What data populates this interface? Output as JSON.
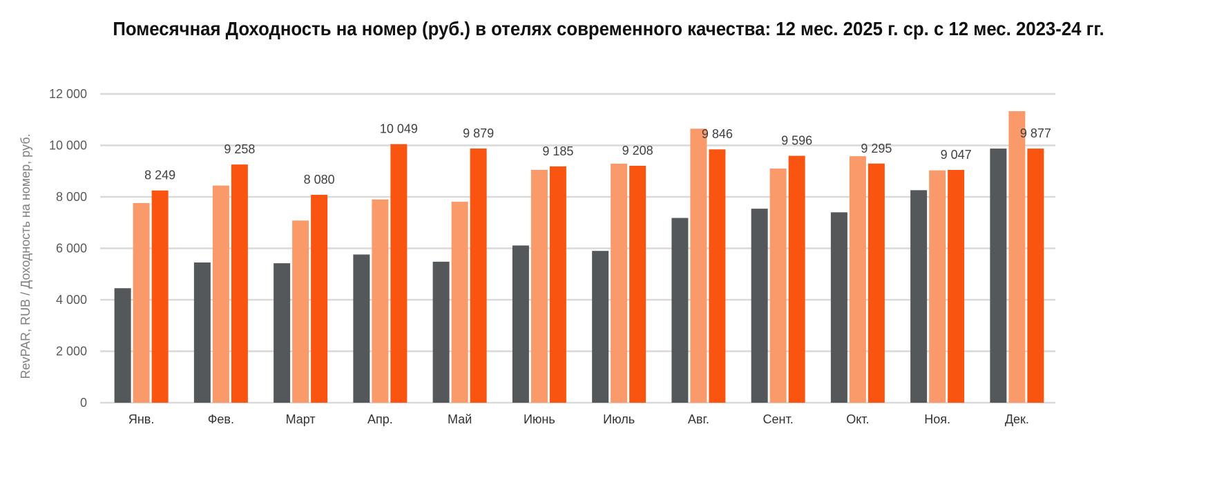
{
  "chart_data": {
    "type": "bar",
    "title": "Помесячная Доходность на номер (руб.) в отелях современного качества: 12 мес. 2025 г. ср. с 12 мес. 2023-24 гг.",
    "xlabel": "",
    "ylabel": "RevPAR, RUB / Доходность на номер, руб.",
    "ylim": [
      0,
      12000
    ],
    "yticks": [
      0,
      2000,
      4000,
      6000,
      8000,
      10000,
      12000
    ],
    "ytick_labels": [
      "0",
      "2 000",
      "4 000",
      "6 000",
      "8 000",
      "10 000",
      "12 000"
    ],
    "grid": true,
    "legend": "none",
    "categories": [
      "Янв.",
      "Фев.",
      "Март",
      "Апр.",
      "Май",
      "Июнь",
      "Июль",
      "Авг.",
      "Сент.",
      "Окт.",
      "Ноя.",
      "Дек."
    ],
    "series": [
      {
        "color": "#54585a",
        "values": [
          4450,
          5450,
          5420,
          5760,
          5480,
          6110,
          5900,
          7180,
          7540,
          7400,
          8260,
          9877
        ]
      },
      {
        "color": "#fa9a6a",
        "values": [
          7760,
          8440,
          7080,
          7900,
          7810,
          9050,
          9290,
          10650,
          9100,
          9580,
          9030,
          11330
        ]
      },
      {
        "color": "#fa5510",
        "values": [
          8249,
          9258,
          8080,
          10049,
          9879,
          9185,
          9208,
          9846,
          9596,
          9295,
          9047,
          9877
        ],
        "data_labels": [
          "8 249",
          "9 258",
          "8 080",
          "10 049",
          "9 879",
          "9 185",
          "9 208",
          "9 846",
          "9 596",
          "9 295",
          "9 047",
          "9 877"
        ]
      }
    ]
  }
}
